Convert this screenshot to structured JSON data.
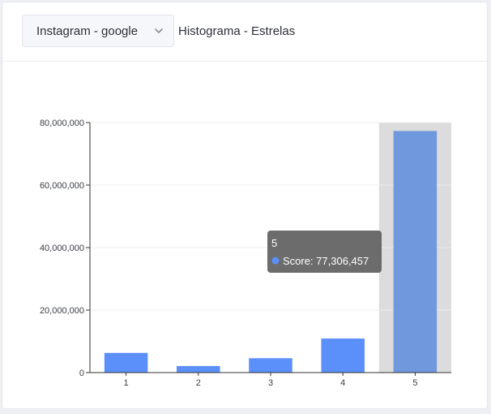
{
  "header": {
    "dropdown_value": "Instagram - google",
    "title": "Histograma - Estrelas"
  },
  "tooltip": {
    "category": "5",
    "series_label": "Score:",
    "value_text": "77,306,457"
  },
  "colors": {
    "bar": "#5b8ff9",
    "bar_highlight": "#7098dc",
    "highlight_band": "#dcdcdc",
    "tooltip_bg": "#5f5f5f"
  },
  "chart_data": {
    "type": "bar",
    "categories": [
      "1",
      "2",
      "3",
      "4",
      "5"
    ],
    "series": [
      {
        "name": "Score",
        "values": [
          6300000,
          2100000,
          4600000,
          10900000,
          77306457
        ]
      }
    ],
    "ylim": [
      0,
      80000000
    ],
    "yticks": [
      0,
      20000000,
      40000000,
      60000000,
      80000000
    ],
    "ytick_labels": [
      "0",
      "20,000,000",
      "40,000,000",
      "60,000,000",
      "80,000,000"
    ],
    "highlighted_category": "5",
    "grid": true
  }
}
